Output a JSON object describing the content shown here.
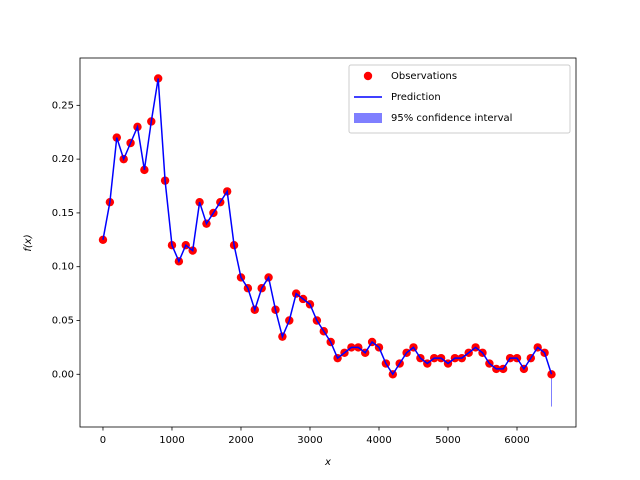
{
  "chart_data": {
    "type": "line",
    "xlabel": "x",
    "ylabel": "f(x)",
    "x": [
      0,
      100,
      200,
      300,
      400,
      500,
      600,
      700,
      800,
      900,
      1000,
      1100,
      1200,
      1300,
      1400,
      1500,
      1600,
      1700,
      1800,
      1900,
      2000,
      2100,
      2200,
      2300,
      2400,
      2500,
      2600,
      2700,
      2800,
      2900,
      3000,
      3100,
      3200,
      3300,
      3400,
      3500,
      3600,
      3700,
      3800,
      3900,
      4000,
      4100,
      4200,
      4300,
      4400,
      4500,
      4600,
      4700,
      4800,
      4900,
      5000,
      5100,
      5200,
      5300,
      5400,
      5500,
      5600,
      5700,
      5800,
      5900,
      6000,
      6100,
      6200,
      6300,
      6400,
      6500
    ],
    "series": [
      {
        "name": "Observations",
        "color": "#ff0000",
        "values": [
          0.125,
          0.16,
          0.22,
          0.2,
          0.215,
          0.23,
          0.19,
          0.235,
          0.275,
          0.18,
          0.12,
          0.105,
          0.12,
          0.115,
          0.16,
          0.14,
          0.15,
          0.16,
          0.17,
          0.12,
          0.09,
          0.08,
          0.06,
          0.08,
          0.09,
          0.06,
          0.035,
          0.05,
          0.075,
          0.07,
          0.065,
          0.05,
          0.04,
          0.03,
          0.015,
          0.02,
          0.025,
          0.025,
          0.02,
          0.03,
          0.025,
          0.01,
          0.0,
          0.01,
          0.02,
          0.025,
          0.015,
          0.01,
          0.015,
          0.015,
          0.01,
          0.015,
          0.015,
          0.02,
          0.025,
          0.02,
          0.01,
          0.005,
          0.005,
          0.015,
          0.015,
          0.005,
          0.015,
          0.025,
          0.02,
          0.0
        ]
      },
      {
        "name": "Prediction",
        "color": "#0000ff",
        "values": [
          0.125,
          0.16,
          0.22,
          0.2,
          0.215,
          0.23,
          0.19,
          0.235,
          0.275,
          0.18,
          0.12,
          0.105,
          0.12,
          0.115,
          0.16,
          0.14,
          0.15,
          0.16,
          0.17,
          0.12,
          0.09,
          0.08,
          0.06,
          0.08,
          0.09,
          0.06,
          0.035,
          0.05,
          0.075,
          0.07,
          0.065,
          0.05,
          0.04,
          0.03,
          0.015,
          0.02,
          0.025,
          0.025,
          0.02,
          0.03,
          0.025,
          0.01,
          0.0,
          0.01,
          0.02,
          0.025,
          0.015,
          0.01,
          0.015,
          0.015,
          0.01,
          0.015,
          0.015,
          0.02,
          0.025,
          0.02,
          0.01,
          0.005,
          0.005,
          0.015,
          0.015,
          0.005,
          0.015,
          0.025,
          0.02,
          0.0
        ]
      },
      {
        "name": "95% confidence interval",
        "color": "#0000ff",
        "lower": [
          0.123,
          0.158,
          0.218,
          0.198,
          0.213,
          0.228,
          0.188,
          0.233,
          0.273,
          0.178,
          0.118,
          0.103,
          0.118,
          0.113,
          0.158,
          0.138,
          0.148,
          0.158,
          0.168,
          0.118,
          0.088,
          0.078,
          0.058,
          0.078,
          0.088,
          0.058,
          0.033,
          0.048,
          0.073,
          0.068,
          0.063,
          0.048,
          0.038,
          0.028,
          0.013,
          0.018,
          0.023,
          0.023,
          0.018,
          0.028,
          0.023,
          0.008,
          -0.002,
          0.008,
          0.018,
          0.023,
          0.013,
          0.008,
          0.013,
          0.013,
          0.008,
          0.013,
          0.013,
          0.018,
          0.023,
          0.018,
          0.008,
          0.003,
          0.003,
          0.013,
          0.013,
          0.003,
          0.013,
          0.023,
          0.018,
          -0.03
        ],
        "upper": [
          0.127,
          0.162,
          0.222,
          0.202,
          0.217,
          0.232,
          0.192,
          0.237,
          0.277,
          0.182,
          0.122,
          0.107,
          0.122,
          0.117,
          0.162,
          0.142,
          0.152,
          0.162,
          0.172,
          0.122,
          0.092,
          0.082,
          0.062,
          0.082,
          0.092,
          0.062,
          0.037,
          0.052,
          0.077,
          0.072,
          0.067,
          0.052,
          0.042,
          0.032,
          0.017,
          0.022,
          0.027,
          0.027,
          0.022,
          0.032,
          0.027,
          0.012,
          0.002,
          0.012,
          0.022,
          0.027,
          0.017,
          0.012,
          0.017,
          0.017,
          0.012,
          0.017,
          0.017,
          0.022,
          0.027,
          0.022,
          0.012,
          0.007,
          0.007,
          0.017,
          0.017,
          0.007,
          0.017,
          0.027,
          0.022,
          0.002
        ]
      }
    ],
    "xlim": [
      -333,
      6855
    ],
    "ylim": [
      -0.049,
      0.294
    ],
    "xticks": [
      0,
      1000,
      2000,
      3000,
      4000,
      5000,
      6000
    ],
    "yticks": [
      {
        "value": 0,
        "label": "0.00"
      },
      {
        "value": 0.05,
        "label": "0.05"
      },
      {
        "value": 0.1,
        "label": "0.10"
      },
      {
        "value": 0.15,
        "label": "0.15"
      },
      {
        "value": 0.2,
        "label": "0.20"
      },
      {
        "value": 0.25,
        "label": "0.25"
      }
    ],
    "legend": "upper right"
  }
}
